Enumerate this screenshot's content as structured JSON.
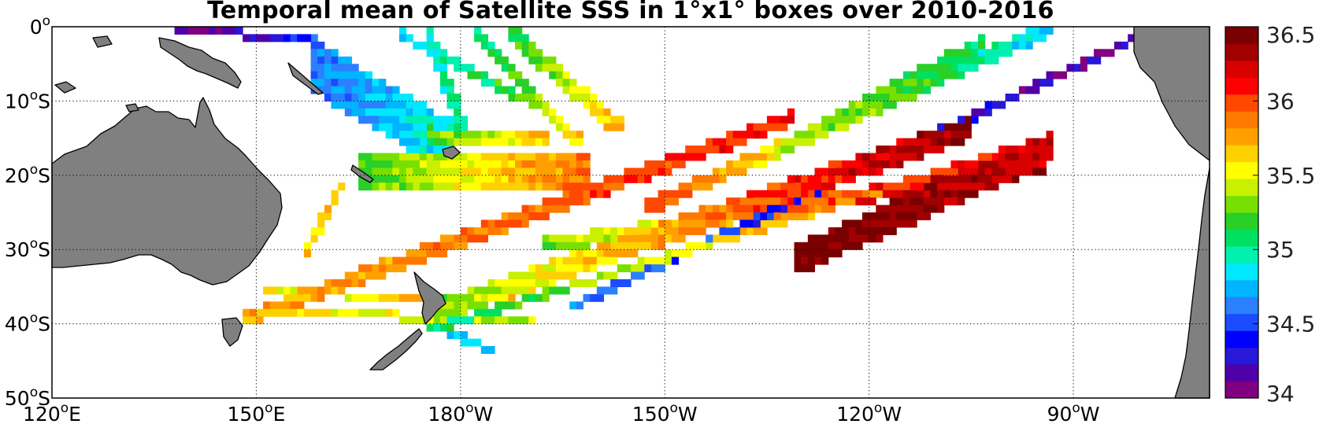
{
  "title": "Temporal mean of Satellite SSS in 1°x1° boxes over 2010-2016",
  "map": {
    "lon_range": [
      120,
      290
    ],
    "lat_range": [
      -50,
      0
    ],
    "grid": "dotted",
    "land_color": "#808080",
    "lon_ticks": [
      {
        "deg": 120,
        "label": "120",
        "hemi": "E"
      },
      {
        "deg": 150,
        "label": "150",
        "hemi": "E"
      },
      {
        "deg": 180,
        "label": "180",
        "hemi": "W"
      },
      {
        "deg": 210,
        "label": "150",
        "hemi": "W"
      },
      {
        "deg": 240,
        "label": "120",
        "hemi": "W"
      },
      {
        "deg": 270,
        "label": "90",
        "hemi": "W"
      }
    ],
    "lat_ticks": [
      {
        "deg": 0,
        "label": "0",
        "hemi": ""
      },
      {
        "deg": -10,
        "label": "10",
        "hemi": "S"
      },
      {
        "deg": -20,
        "label": "20",
        "hemi": "S"
      },
      {
        "deg": -30,
        "label": "30",
        "hemi": "S"
      },
      {
        "deg": -40,
        "label": "40",
        "hemi": "S"
      },
      {
        "deg": -50,
        "label": "50",
        "hemi": "S"
      }
    ]
  },
  "colorbar": {
    "range": [
      34,
      36.5
    ],
    "ticks": [
      "36.5",
      "36",
      "35.5",
      "35",
      "34.5",
      "34"
    ],
    "colors": [
      "#800080",
      "#5000a8",
      "#2818d8",
      "#0000ff",
      "#1c4cff",
      "#2a80ff",
      "#00b4ff",
      "#00e8ff",
      "#00f0b0",
      "#00e060",
      "#28d028",
      "#78e000",
      "#c8f000",
      "#ffff00",
      "#ffd000",
      "#ffa000",
      "#ff7800",
      "#ff4800",
      "#ff0000",
      "#d80000",
      "#a00000",
      "#780000"
    ]
  },
  "chart_data": {
    "type": "heatmap",
    "variable": "Satellite SSS",
    "period": "2010-2016",
    "grid_resolution": "1°x1°",
    "value_range": [
      34,
      36.5
    ],
    "tracks": [
      {
        "lon0": 148,
        "lat0": -39,
        "lon1": 228,
        "lat1": -12,
        "value_start": 35.7,
        "value_end": 36.1,
        "width": 2
      },
      {
        "lon0": 226,
        "lat0": -16.5,
        "lon1": 256,
        "lat1": -2,
        "value_start": 35.4,
        "value_end": 35.1,
        "width": 2
      },
      {
        "lon0": 207,
        "lat0": -24,
        "lon1": 266,
        "lat1": 0,
        "value_start": 36.0,
        "value_end": 34.8,
        "width": 2
      },
      {
        "lon0": 176,
        "lat0": -37.5,
        "lon1": 254,
        "lat1": -13,
        "value_start": 35.3,
        "value_end": 36.4,
        "width": 3
      },
      {
        "lon0": 229,
        "lat0": -30,
        "lon1": 266,
        "lat1": -15,
        "value_start": 36.5,
        "value_end": 36.2,
        "width": 4
      },
      {
        "lon0": 175,
        "lat0": -41,
        "lon1": 263,
        "lat1": -16,
        "value_start": 35.0,
        "value_end": 36.2,
        "width": 1
      },
      {
        "lon0": 196,
        "lat0": -38,
        "lon1": 283,
        "lat1": 0,
        "value_start": 34.6,
        "value_end": 34.1,
        "width": 1
      },
      {
        "lon0": 192,
        "lat0": -29,
        "lon1": 265,
        "lat1": -18.5,
        "value_start": 35.3,
        "value_end": 36.5,
        "width": 2
      },
      {
        "lon0": 152,
        "lat0": -38,
        "lon1": 190,
        "lat1": -40,
        "value_start": 35.6,
        "value_end": 35.4,
        "width": 1
      },
      {
        "lon0": 151,
        "lat0": -35.5,
        "lon1": 187,
        "lat1": -37,
        "value_start": 35.5,
        "value_end": 35.7,
        "width": 1
      },
      {
        "lon0": 178,
        "lat0": -41,
        "lon1": 184,
        "lat1": -43.5,
        "value_start": 34.9,
        "value_end": 34.7,
        "width": 1
      },
      {
        "lon0": 157,
        "lat0": -31,
        "lon1": 162,
        "lat1": -22,
        "value_start": 35.6,
        "value_end": 35.7,
        "width": 1
      },
      {
        "lon0": 165,
        "lat0": -18,
        "lon1": 198,
        "lat1": -18,
        "value_start": 35.2,
        "value_end": 35.9,
        "width": 5
      },
      {
        "lon0": 171,
        "lat0": -20,
        "lon1": 192,
        "lat1": -21,
        "value_start": 35.4,
        "value_end": 35.8,
        "width": 2
      },
      {
        "lon0": 175,
        "lat0": -14,
        "lon1": 192,
        "lat1": -15,
        "value_start": 35.2,
        "value_end": 35.7,
        "width": 2
      },
      {
        "lon0": 158,
        "lat0": -2,
        "lon1": 178,
        "lat1": -13,
        "value_start": 34.6,
        "value_end": 34.9,
        "width": 7
      },
      {
        "lon0": 138,
        "lat0": 0,
        "lon1": 158,
        "lat1": -2,
        "value_start": 34.1,
        "value_end": 34.4,
        "width": 1
      },
      {
        "lon0": 175,
        "lat0": 0,
        "lon1": 181,
        "lat1": -15,
        "value_start": 34.9,
        "value_end": 35.1,
        "width": 2
      },
      {
        "lon0": 182,
        "lat0": 0,
        "lon1": 197,
        "lat1": -15,
        "value_start": 35.0,
        "value_end": 35.6,
        "width": 2
      },
      {
        "lon0": 187,
        "lat0": 0,
        "lon1": 203,
        "lat1": -13,
        "value_start": 35.1,
        "value_end": 35.7,
        "width": 2
      },
      {
        "lon0": 171,
        "lat0": -1,
        "lon1": 192,
        "lat1": -11,
        "value_start": 34.8,
        "value_end": 35.3,
        "width": 1
      }
    ]
  }
}
